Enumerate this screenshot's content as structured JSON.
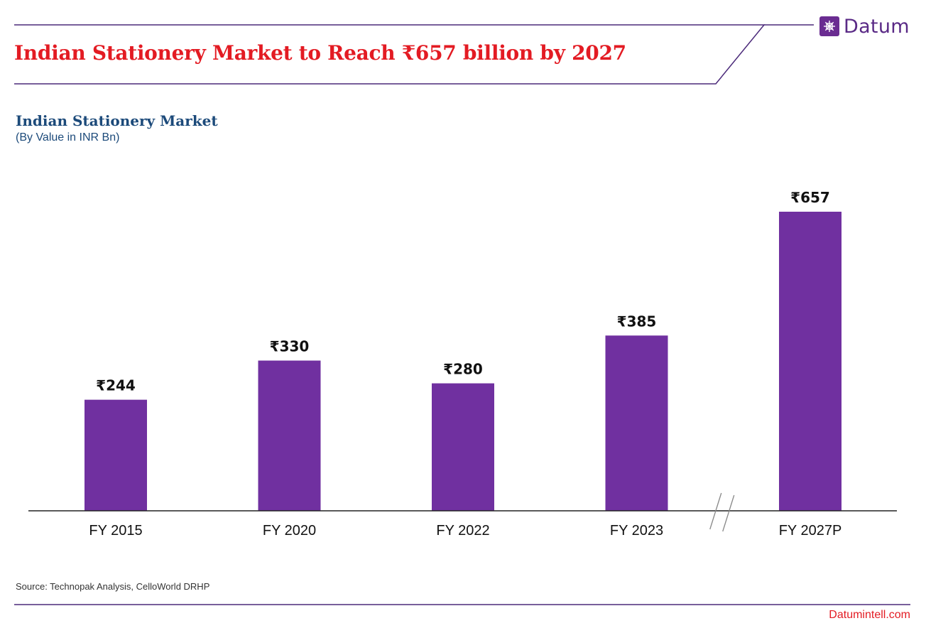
{
  "header": {
    "headline": "Indian Stationery Market to Reach ₹657 billion by 2027",
    "logo_text": "Datum"
  },
  "chart_data": {
    "type": "bar",
    "title": "Indian Stationery Market",
    "subtitle": "(By Value in INR Bn)",
    "categories": [
      "FY 2015",
      "FY 2020",
      "FY 2022",
      "FY 2023",
      "FY 2027P"
    ],
    "values": [
      244,
      330,
      280,
      385,
      657
    ],
    "value_labels": [
      "₹244",
      "₹330",
      "₹280",
      "₹385",
      "₹657"
    ],
    "axis_break_between": [
      "FY 2023",
      "FY 2027P"
    ],
    "ylim": [
      0,
      657
    ],
    "grid": false,
    "bar_color": "#7030a0"
  },
  "footer": {
    "source": "Source: Technopak Analysis, CelloWorld DRHP",
    "site": "Datumintell.com"
  },
  "colors": {
    "accent": "#5a2a86",
    "headline": "#e31b23",
    "chart_title": "#1c4a7a"
  }
}
